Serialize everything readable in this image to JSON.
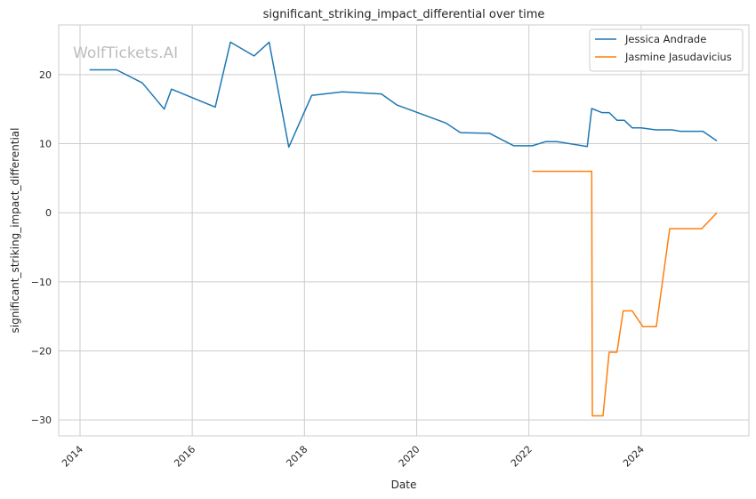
{
  "chart_data": {
    "type": "line",
    "title": "significant_striking_impact_differential over time",
    "xlabel": "Date",
    "ylabel": "significant_striking_impact_differential",
    "xlim": [
      2013.62,
      2025.92
    ],
    "ylim": [
      -32.3,
      27.2
    ],
    "xticks": [
      2014,
      2016,
      2018,
      2020,
      2022,
      2024
    ],
    "xtick_labels": [
      "2014",
      "2016",
      "2018",
      "2020",
      "2022",
      "2024"
    ],
    "yticks": [
      20,
      10,
      0,
      -10,
      -20,
      -30
    ],
    "ytick_labels": [
      "20",
      "10",
      "0",
      "−10",
      "−20",
      "−30"
    ],
    "grid": true,
    "legend_position": "top-right",
    "watermark": "WolfTickets.AI",
    "series": [
      {
        "name": "Jessica Andrade",
        "color": "#1f77b4",
        "x": [
          2014.17,
          2014.65,
          2015.11,
          2015.5,
          2015.63,
          2016.41,
          2016.68,
          2017.1,
          2017.37,
          2017.72,
          2018.13,
          2018.67,
          2019.37,
          2019.65,
          2020.52,
          2020.78,
          2021.3,
          2021.73,
          2022.06,
          2022.3,
          2022.5,
          2023.04,
          2023.12,
          2023.3,
          2023.43,
          2023.57,
          2023.7,
          2023.84,
          2024.0,
          2024.26,
          2024.55,
          2024.7,
          2025.1,
          2025.35
        ],
        "y": [
          20.7,
          20.7,
          18.8,
          15.0,
          17.9,
          15.3,
          24.7,
          22.7,
          24.7,
          9.5,
          17.0,
          17.5,
          17.2,
          15.6,
          13.0,
          11.6,
          11.5,
          9.7,
          9.7,
          10.3,
          10.3,
          9.6,
          15.1,
          14.5,
          14.5,
          13.4,
          13.4,
          12.3,
          12.3,
          12.0,
          12.0,
          11.8,
          11.8,
          10.4
        ]
      },
      {
        "name": "Jasmine Jasudavicius",
        "color": "#ff7f0e",
        "x": [
          2022.06,
          2023.12,
          2023.13,
          2023.32,
          2023.43,
          2023.57,
          2023.68,
          2023.84,
          2024.03,
          2024.27,
          2024.51,
          2025.08,
          2025.35
        ],
        "y": [
          6.0,
          6.0,
          -29.4,
          -29.4,
          -20.2,
          -20.2,
          -14.2,
          -14.2,
          -16.5,
          -16.5,
          -2.3,
          -2.3,
          0.0
        ]
      }
    ]
  }
}
